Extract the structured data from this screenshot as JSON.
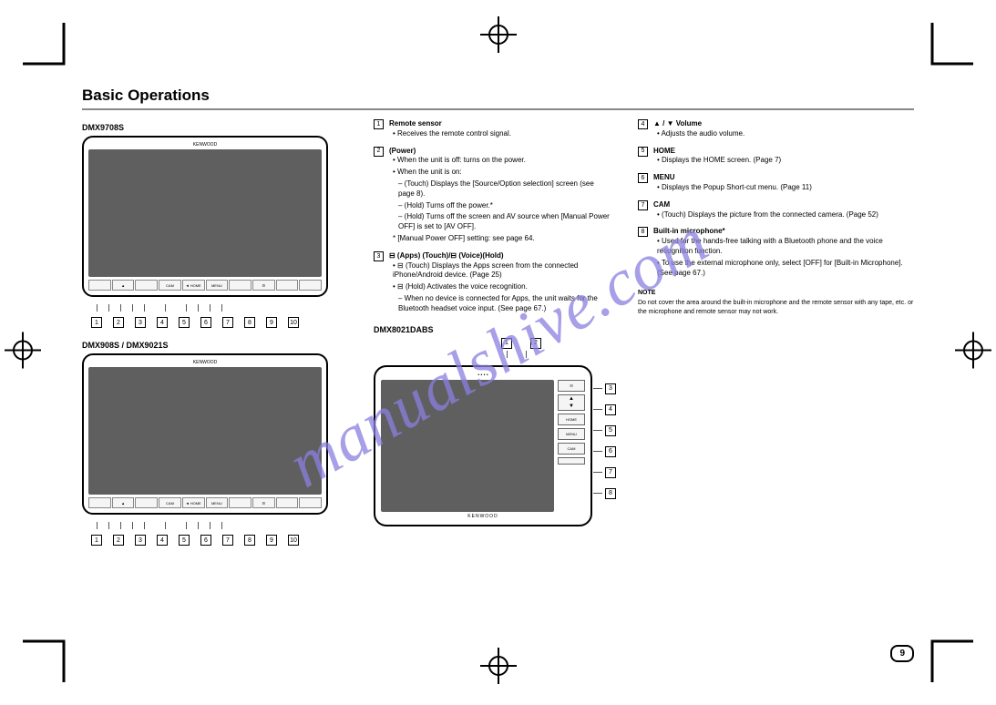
{
  "section_title": "Basic Operations",
  "watermark": "manualshive.com",
  "page_number": "9",
  "models": {
    "a": "DMX9708S",
    "b": "DMX908S / DMX9021S"
  },
  "device_brand": "KENWOOD",
  "button_labels": [
    "",
    "▲",
    "",
    "CAM",
    "◄ HOME",
    "MENU",
    "",
    "⊟",
    "",
    ""
  ],
  "callouts_1_10": [
    "1",
    "2",
    "3",
    "4",
    "5",
    "6",
    "7",
    "8",
    "9",
    "10"
  ],
  "items_mid": [
    {
      "n": "1",
      "label": "Remote sensor",
      "sub": [
        "• Receives the remote control signal."
      ]
    },
    {
      "n": "2",
      "label": "(Power)",
      "sub": [
        "• When the unit is off: turns on the power.",
        "• When the unit is on:",
        "  – (Touch) Displays the [Source/Option selection] screen (see page 8).",
        "  – (Hold) Turns off the power.*",
        "  – (Hold) Turns off the screen and AV source when [Manual Power OFF] is set to [AV OFF].",
        "* [Manual Power OFF] setting: see page 64."
      ]
    },
    {
      "n": "3",
      "label": "⊟ (Apps) (Touch)/⊟ (Voice)(Hold)",
      "sub": [
        "• ⊟ (Touch) Displays the Apps screen from the connected iPhone/Android device. (Page 25)",
        "• ⊟ (Hold) Activates the voice recognition.",
        "  – When no device is connected for Apps, the unit waits for the Bluetooth headset voice input. (See page 67.)"
      ]
    }
  ],
  "items_right": [
    {
      "n": "4",
      "label": "▲ / ▼ Volume",
      "sub": [
        "• Adjusts the audio volume."
      ]
    },
    {
      "n": "5",
      "label": "HOME",
      "sub": [
        "• Displays the HOME screen. (Page 7)"
      ]
    },
    {
      "n": "6",
      "label": "MENU",
      "sub": [
        "• Displays the Popup Short-cut menu. (Page 11)"
      ]
    },
    {
      "n": "7",
      "label": "CAM",
      "sub": [
        "• (Touch) Displays the picture from the connected camera. (Page 52)"
      ]
    },
    {
      "n": "8",
      "label": "Built-in microphone*",
      "sub": [
        "• Used for the hands-free talking with a Bluetooth phone and the voice recognition function.",
        "• To use the external microphone only, select [OFF] for [Built-in Microphone]. (See page 67.)"
      ]
    }
  ],
  "note": {
    "title": "NOTE",
    "text": "Do not cover the area around the built-in microphone and the remote sensor with any tape, etc. or the microphone and remote sensor may not work."
  },
  "device2": {
    "model": "DMX8021DABS",
    "callouts_top": [
      "1",
      "2"
    ],
    "side_callouts": [
      "3",
      "4",
      "5",
      "6",
      "7",
      "8"
    ],
    "side_labels": [
      "⊟",
      "▲ ▼",
      "HOME",
      "MENU",
      "CAM",
      ""
    ]
  }
}
